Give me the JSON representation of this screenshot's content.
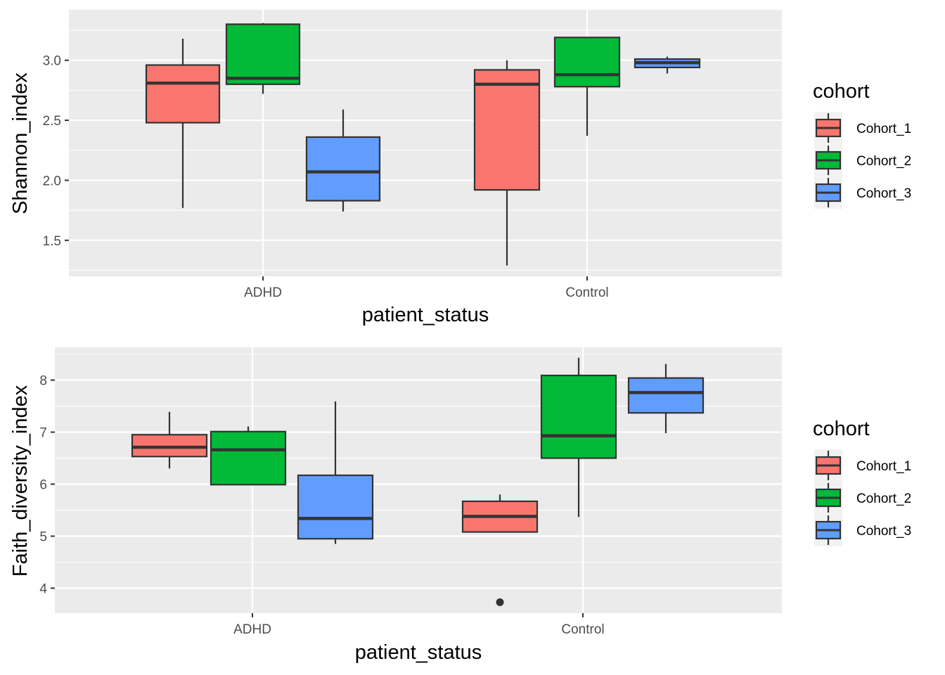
{
  "colors": {
    "panel_background": "#EBEBEB",
    "grid": "#FFFFFF",
    "box_outline": "#333333",
    "Cohort_1": "#F8766D",
    "Cohort_2": "#00BA38",
    "Cohort_3": "#619CFF"
  },
  "chart_data": [
    {
      "type": "box",
      "xlabel": "patient_status",
      "ylabel": "Shannon_index",
      "categories": [
        "ADHD",
        "Control"
      ],
      "ylim": [
        1.2,
        3.42
      ],
      "yticks": [
        1.5,
        2.0,
        2.5,
        3.0
      ],
      "ytick_labels": [
        "1.5",
        "2.0",
        "2.5",
        "3.0"
      ],
      "legend": {
        "title": "cohort",
        "position": "right",
        "entries": [
          "Cohort_1",
          "Cohort_2",
          "Cohort_3"
        ]
      },
      "series": [
        {
          "name": "Cohort_1",
          "boxes": [
            {
              "category": "ADHD",
              "min": 1.77,
              "q1": 2.48,
              "median": 2.81,
              "q3": 2.96,
              "max": 3.18,
              "outliers": []
            },
            {
              "category": "Control",
              "min": 1.29,
              "q1": 1.92,
              "median": 2.8,
              "q3": 2.92,
              "max": 3.0,
              "outliers": []
            }
          ]
        },
        {
          "name": "Cohort_2",
          "boxes": [
            {
              "category": "ADHD",
              "min": 2.72,
              "q1": 2.8,
              "median": 2.85,
              "q3": 3.3,
              "max": 3.31,
              "outliers": []
            },
            {
              "category": "Control",
              "min": 2.37,
              "q1": 2.78,
              "median": 2.88,
              "q3": 3.19,
              "max": 3.19,
              "outliers": []
            }
          ]
        },
        {
          "name": "Cohort_3",
          "boxes": [
            {
              "category": "ADHD",
              "min": 1.74,
              "q1": 1.83,
              "median": 2.07,
              "q3": 2.36,
              "max": 2.59,
              "outliers": []
            },
            {
              "category": "Control",
              "min": 2.89,
              "q1": 2.94,
              "median": 2.98,
              "q3": 3.01,
              "max": 3.03,
              "outliers": []
            }
          ]
        }
      ]
    },
    {
      "type": "box",
      "xlabel": "patient_status",
      "ylabel": "Faith_diversity_index",
      "categories": [
        "ADHD",
        "Control"
      ],
      "ylim": [
        3.52,
        8.63
      ],
      "yticks": [
        4,
        5,
        6,
        7,
        8
      ],
      "ytick_labels": [
        "4",
        "5",
        "6",
        "7",
        "8"
      ],
      "legend": {
        "title": "cohort",
        "position": "right",
        "entries": [
          "Cohort_1",
          "Cohort_2",
          "Cohort_3"
        ]
      },
      "series": [
        {
          "name": "Cohort_1",
          "boxes": [
            {
              "category": "ADHD",
              "min": 6.3,
              "q1": 6.53,
              "median": 6.71,
              "q3": 6.95,
              "max": 7.39,
              "outliers": []
            },
            {
              "category": "Control",
              "min": 5.07,
              "q1": 5.08,
              "median": 5.38,
              "q3": 5.67,
              "max": 5.8,
              "outliers": [
                3.73
              ]
            }
          ]
        },
        {
          "name": "Cohort_2",
          "boxes": [
            {
              "category": "ADHD",
              "min": 5.98,
              "q1": 5.99,
              "median": 6.66,
              "q3": 7.01,
              "max": 7.11,
              "outliers": []
            },
            {
              "category": "Control",
              "min": 5.37,
              "q1": 6.5,
              "median": 6.93,
              "q3": 8.09,
              "max": 8.43,
              "outliers": []
            }
          ]
        },
        {
          "name": "Cohort_3",
          "boxes": [
            {
              "category": "ADHD",
              "min": 4.85,
              "q1": 4.95,
              "median": 5.34,
              "q3": 6.17,
              "max": 7.59,
              "outliers": []
            },
            {
              "category": "Control",
              "min": 6.98,
              "q1": 7.37,
              "median": 7.76,
              "q3": 8.04,
              "max": 8.31,
              "outliers": []
            }
          ]
        }
      ]
    }
  ]
}
